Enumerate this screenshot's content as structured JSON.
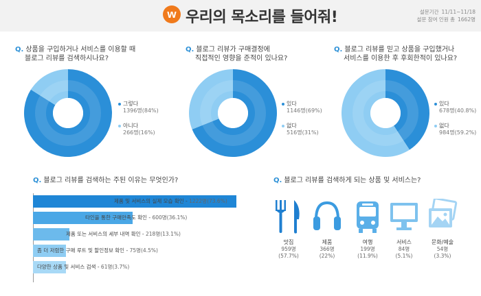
{
  "header": {
    "logo_letter": "w",
    "title": "우리의 목소리를 들어줘!",
    "period_label": "설문기간",
    "period_value": "11/11~11/18",
    "participants_label": "설문 참여 인원 총",
    "participants_value": "1662명"
  },
  "colors": {
    "dark": "#2b8fd8",
    "mid": "#4aa7e6",
    "light": "#8fcdf3",
    "accent": "#f07a1c"
  },
  "chart_data": [
    {
      "type": "pie",
      "title_q": "Q.",
      "title_lines": [
        "상품을 구입하거나 서비스를 이용할 때",
        "블로그 리뷰를 검색하시나요?"
      ],
      "slices": [
        {
          "label": "그렇다",
          "value": 1396,
          "value_text": "1396명",
          "pct_text": "(84%)",
          "pct": 84,
          "color": "#2b8fd8"
        },
        {
          "label": "아니다",
          "value": 266,
          "value_text": "266명",
          "pct_text": "(16%)",
          "pct": 16,
          "color": "#8fcdf3"
        }
      ]
    },
    {
      "type": "pie",
      "title_q": "Q.",
      "title_lines": [
        "블로그 리뷰가 구매결정에",
        "직접적인 영향을 준적이 있나요?"
      ],
      "slices": [
        {
          "label": "있다",
          "value": 1146,
          "value_text": "1146명",
          "pct_text": "(69%)",
          "pct": 69,
          "color": "#2b8fd8"
        },
        {
          "label": "없다",
          "value": 516,
          "value_text": "516명",
          "pct_text": "(31%)",
          "pct": 31,
          "color": "#8fcdf3"
        }
      ]
    },
    {
      "type": "pie",
      "title_q": "Q.",
      "title_lines": [
        "블로그 리뷰를 믿고 상품을 구입했거나",
        "서비스를 이용한 후 후회한적이 있나요?"
      ],
      "slices": [
        {
          "label": "있다",
          "value": 678,
          "value_text": "678명",
          "pct_text": "(40.8%)",
          "pct": 40.8,
          "color": "#2b8fd8"
        },
        {
          "label": "없다",
          "value": 984,
          "value_text": "984명",
          "pct_text": "(59.2%)",
          "pct": 59.2,
          "color": "#8fcdf3"
        }
      ]
    },
    {
      "type": "bar",
      "orientation": "horizontal",
      "title_q": "Q.",
      "title": "블로그 리뷰를 검색하는 주된 이유는 무엇인가?",
      "xlim": [
        0,
        1222
      ],
      "bars": [
        {
          "label": "제품 및 서비스의 실제 모습 확인",
          "count_text": "1222명(73.6%)",
          "value": 1222,
          "color": "#1f86d6"
        },
        {
          "label": "타인을 통한 구매만족도 확인",
          "count_text": "600명(36.1%)",
          "value": 600,
          "color": "#4aa7e6"
        },
        {
          "label": "제품 또는 서비스의 세부 내역 확인",
          "count_text": "218명(13.1%)",
          "value": 218,
          "color": "#6cbaec"
        },
        {
          "label": "좀 더 저렴한 구매 루트 및 할인정보 확인",
          "count_text": "75명(4.5%)",
          "value": 75,
          "color": "#8fcdf3"
        },
        {
          "label": "다양한 상품 및 서비스 검색",
          "count_text": "61명(3.7%)",
          "value": 61,
          "color": "#a8d9f6"
        }
      ]
    },
    {
      "type": "table",
      "title_q": "Q.",
      "title": "블로그 리뷰를 검색하게 되는 상품 및 서비스는?",
      "items": [
        {
          "icon": "fork-knife-icon",
          "label": "맛집",
          "count": "959명",
          "pct": "(57.7%)",
          "value": 959,
          "color": "#1f7fd0"
        },
        {
          "icon": "headphones-icon",
          "label": "제품",
          "count": "366명",
          "pct": "(22%)",
          "value": 366,
          "color": "#3b9be0"
        },
        {
          "icon": "bus-icon",
          "label": "여행",
          "count": "199명",
          "pct": "(11.9%)",
          "value": 199,
          "color": "#5aafe8"
        },
        {
          "icon": "monitor-icon",
          "label": "서비스",
          "count": "84명",
          "pct": "(5.1%)",
          "value": 84,
          "color": "#7ec2ee"
        },
        {
          "icon": "picture-icon",
          "label": "문화/예술",
          "count": "54명",
          "pct": "(3.3%)",
          "value": 54,
          "color": "#a4d4f4"
        }
      ]
    }
  ]
}
